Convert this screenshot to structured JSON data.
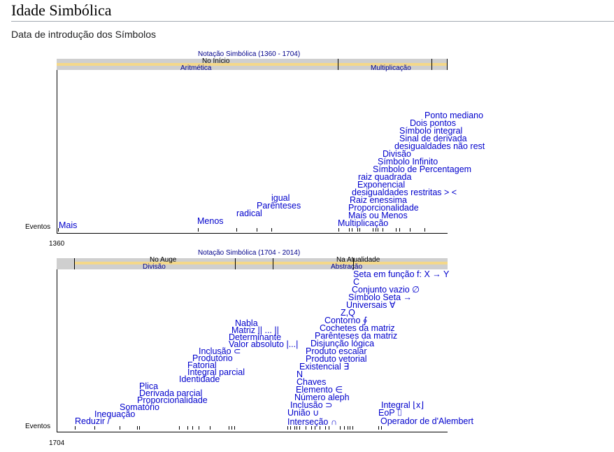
{
  "page": {
    "title": "Idade Simbólica",
    "subtitle": "Data de introdução dos Símbolos"
  },
  "timeline1": {
    "period_label": "Notação Simbólica (1360 - 1704)",
    "era_label": "No Início",
    "sub_left": "Aritmética",
    "sub_right": "Multiplicação",
    "row_label": "Eventos",
    "start_year": "1360",
    "events": [
      "Ponto mediano",
      "Dois pontos",
      "Símbolo integral",
      "Sinal de derivada",
      "desigualdades não restritas",
      "Divisão",
      "Símbolo Infinito",
      "Símbolo de Percentagem",
      "raiz quadrada",
      "Exponencial",
      "desigualdades restritas > <",
      "Raiz enessima",
      "Proporcionalidade",
      "Mais ou Menos",
      "Multiplicação",
      "igual",
      "Parênteses",
      "radical",
      "Menos",
      "Mais"
    ]
  },
  "timeline2": {
    "period_label": "Notação Simbólica (1704 - 2014)",
    "era_left": "No Auge",
    "era_right": "Na Atualidade",
    "sub_left": "Divisão",
    "sub_right": "Abstração",
    "row_label": "Eventos",
    "start_year": "1704",
    "events": [
      "Seta em função f: X → Y",
      "C",
      "Conjunto vazio ∅",
      "Símbolo Seta →",
      "Universais ∀",
      "Z,Q",
      "Contorno ∮",
      "Cochetes da matriz",
      "Parênteses da matriz",
      "Disjunção lógica",
      "Produto escalar",
      "Produto vetorial",
      "Existencial ∃",
      "N",
      "Chaves",
      "Elemento ∈",
      "Número aleph",
      "Inclusão ⊃",
      "União ∪",
      "Interseção ∩",
      "Integral ⌊x⌋",
      "EoP ⌷",
      "Operador de d'Alembert",
      "Nabla",
      "Matriz || ... ||",
      "Determinante",
      "Valor absoluto |...|",
      "Inclusão ⊂",
      "Produtório",
      "Fatorial",
      "Integral parcial",
      "Identidade",
      "Plica",
      "Derivada parcial",
      "Proporcionalidade",
      "Somatório",
      "Inequação",
      "Reduzir /"
    ]
  }
}
